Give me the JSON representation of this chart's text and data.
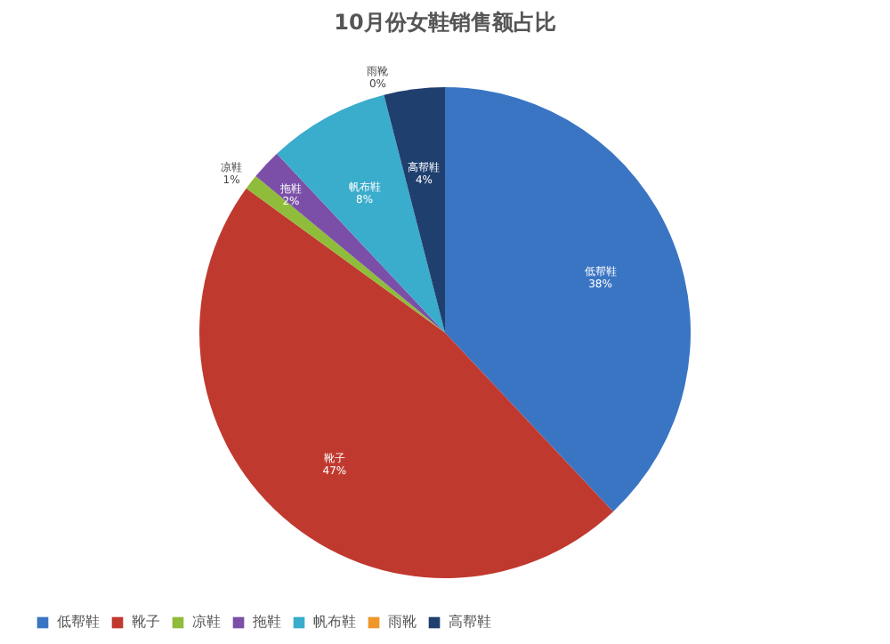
{
  "chart_data": {
    "type": "pie",
    "title": "10月份女鞋销售额占比",
    "categories": [
      "低帮鞋",
      "靴子",
      "凉鞋",
      "拖鞋",
      "帆布鞋",
      "雨靴",
      "高帮鞋"
    ],
    "values": [
      38,
      47,
      1,
      2,
      8,
      0,
      4
    ],
    "value_labels": [
      "38%",
      "47%",
      "1%",
      "2%",
      "8%",
      "0%",
      "4%"
    ],
    "colors": [
      "#3a75c4",
      "#c0392f",
      "#8fbc3a",
      "#7b4fa8",
      "#3aaccc",
      "#f0962a",
      "#1f3f6e"
    ],
    "legend": "bottom"
  }
}
